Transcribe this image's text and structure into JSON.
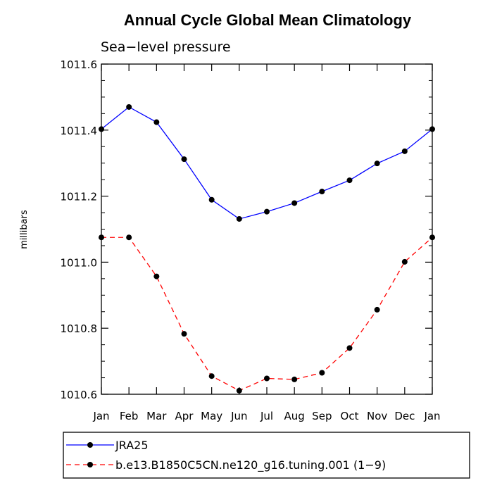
{
  "chart_data": {
    "type": "line",
    "title": "Annual Cycle Global Mean Climatology",
    "subtitle": "Sea−level pressure",
    "xlabel": "",
    "ylabel": "millibars",
    "categories": [
      "Jan",
      "Feb",
      "Mar",
      "Apr",
      "May",
      "Jun",
      "Jul",
      "Aug",
      "Sep",
      "Oct",
      "Nov",
      "Dec",
      "Jan"
    ],
    "ylim": [
      1010.6,
      1011.6
    ],
    "y_ticks": [
      "1010.6",
      "1010.8",
      "1011.0",
      "1011.2",
      "1011.4",
      "1011.6"
    ],
    "grid": false,
    "legend_position": "bottom",
    "series": [
      {
        "name": "JRA25",
        "color": "#0000ff",
        "line_style": "solid",
        "values": [
          1011.403,
          1011.47,
          1011.424,
          1011.312,
          1011.189,
          1011.131,
          1011.153,
          1011.179,
          1011.214,
          1011.248,
          1011.299,
          1011.336,
          1011.403
        ]
      },
      {
        "name": "b.e13.B1850C5CN.ne120_g16.tuning.001 (1−9)",
        "color": "#ff0000",
        "line_style": "dashed",
        "values": [
          1011.075,
          1011.075,
          1010.957,
          1010.783,
          1010.655,
          1010.611,
          1010.648,
          1010.645,
          1010.665,
          1010.74,
          1010.856,
          1011.001,
          1011.075
        ]
      }
    ]
  }
}
